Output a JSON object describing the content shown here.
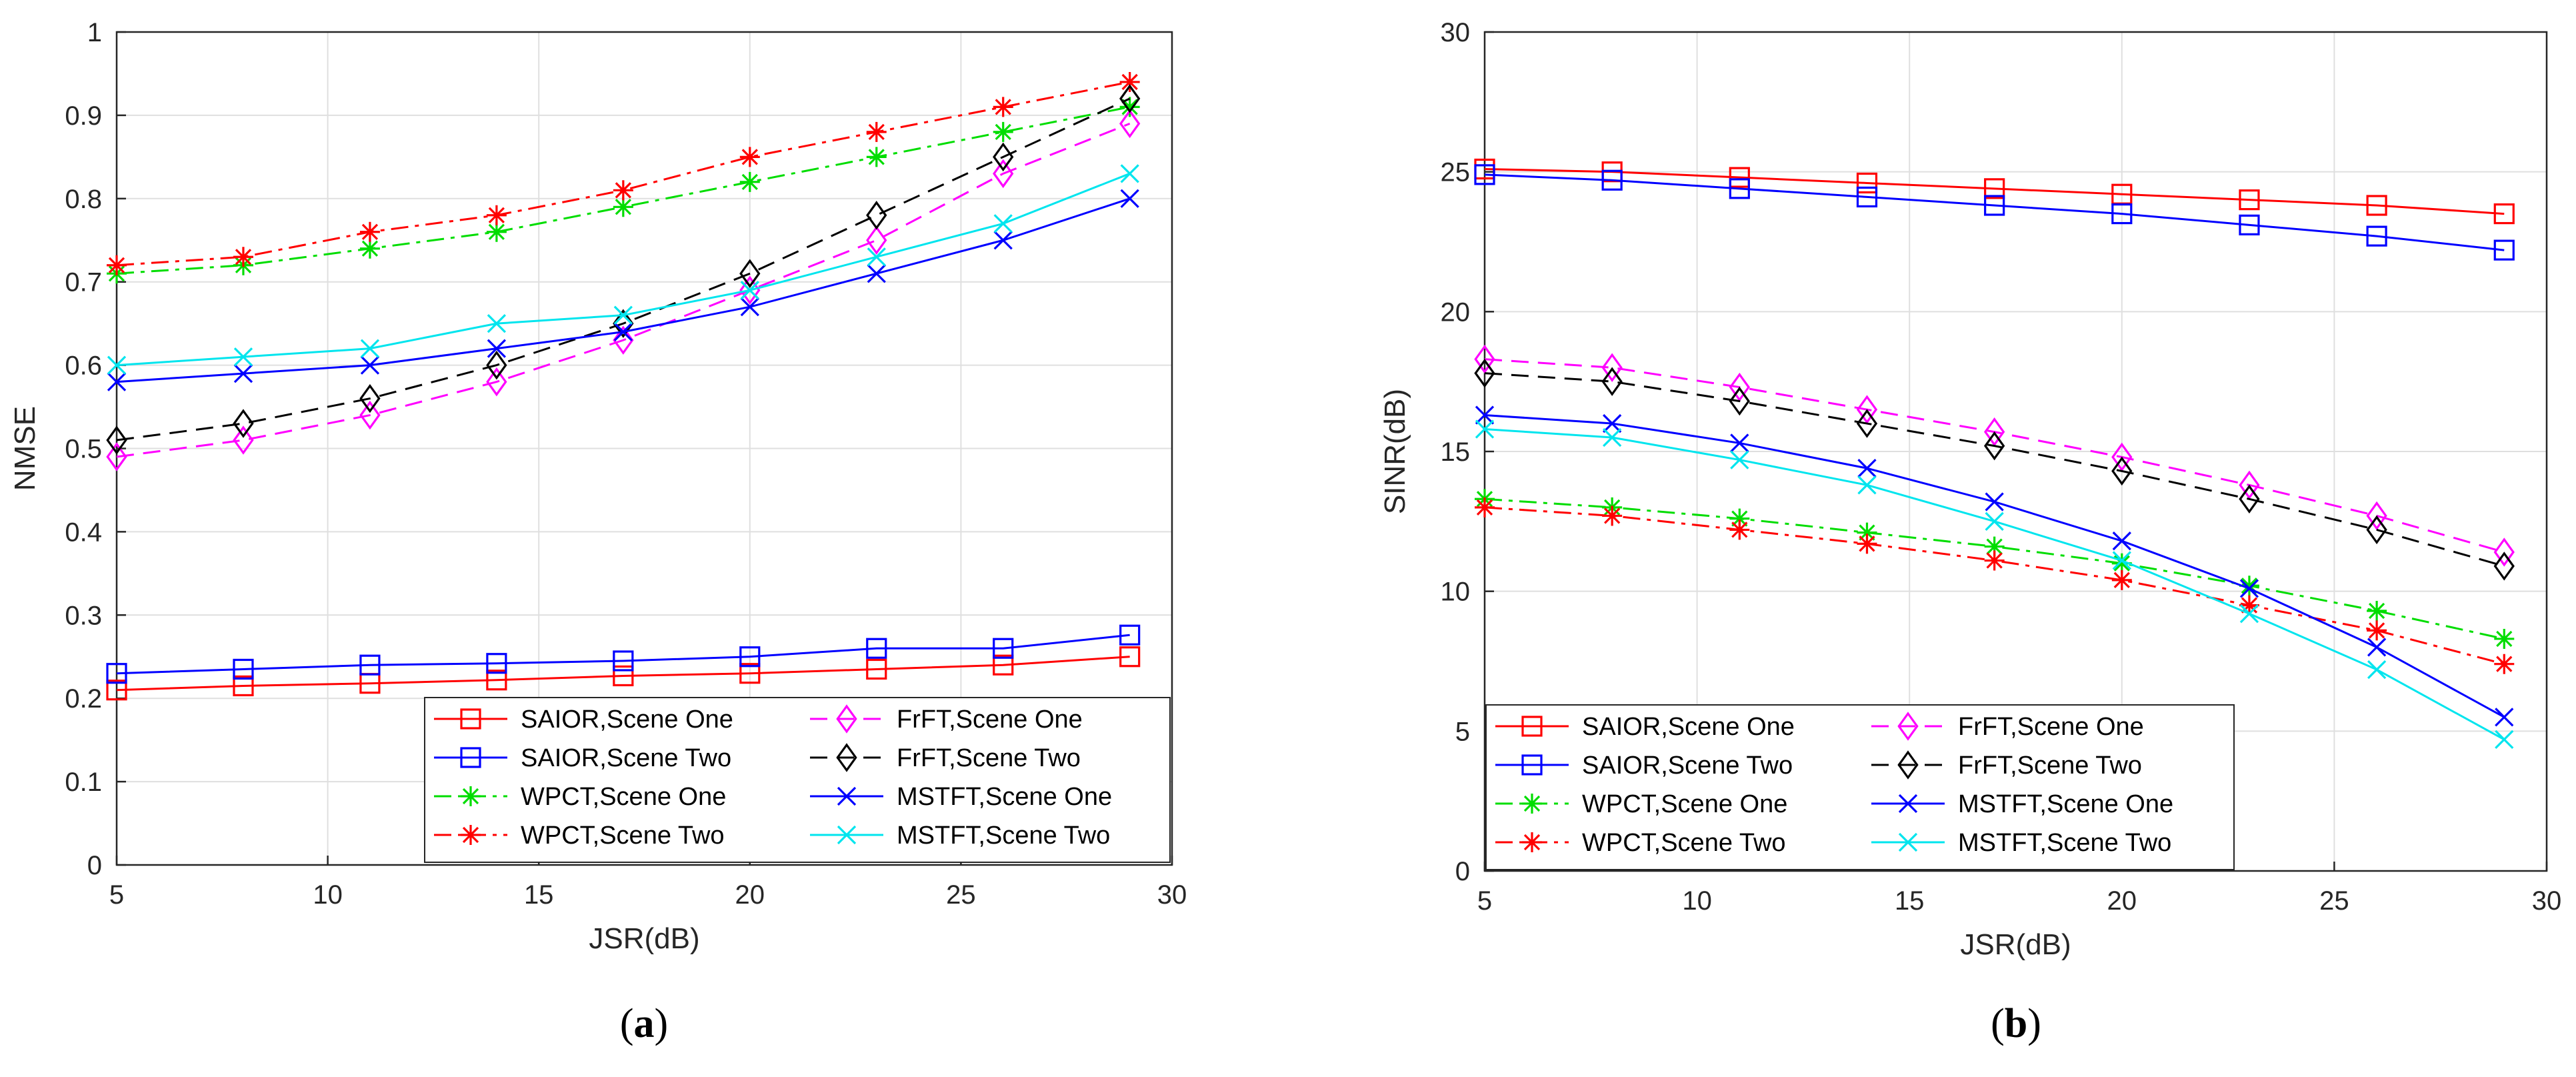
{
  "chart_data": [
    {
      "id": "a",
      "type": "line",
      "caption_open": "(",
      "caption_letter": "a",
      "caption_close": ")",
      "xlabel": "JSR(dB)",
      "ylabel": "NMSE",
      "xlim": [
        5,
        30
      ],
      "ylim": [
        0,
        1
      ],
      "xticks": [
        5,
        10,
        15,
        20,
        25,
        30
      ],
      "yticks": [
        0,
        0.1,
        0.2,
        0.3,
        0.4,
        0.5,
        0.6,
        0.7,
        0.8,
        0.9,
        1
      ],
      "ytick_labels": [
        "0",
        "0.1",
        "0.2",
        "0.3",
        "0.4",
        "0.5",
        "0.6",
        "0.7",
        "0.8",
        "0.9",
        "1"
      ],
      "grid": true,
      "legend_position": "bottom-right",
      "x": [
        5,
        8,
        11,
        14,
        17,
        20,
        23,
        26,
        29
      ],
      "series": [
        {
          "name": "SAIOR,Scene One",
          "color": "#ff0000",
          "dash": "solid",
          "marker": "square",
          "values": [
            0.21,
            0.215,
            0.218,
            0.222,
            0.227,
            0.23,
            0.235,
            0.24,
            0.25
          ]
        },
        {
          "name": "SAIOR,Scene Two",
          "color": "#0000ff",
          "dash": "solid",
          "marker": "square",
          "values": [
            0.23,
            0.235,
            0.24,
            0.242,
            0.245,
            0.25,
            0.26,
            0.26,
            0.276
          ]
        },
        {
          "name": "WPCT,Scene One",
          "color": "#00dd00",
          "dash": "dashdot",
          "marker": "asterisk",
          "values": [
            0.71,
            0.72,
            0.74,
            0.76,
            0.79,
            0.82,
            0.85,
            0.88,
            0.91
          ]
        },
        {
          "name": "WPCT,Scene Two",
          "color": "#ff0000",
          "dash": "dashdot",
          "marker": "asterisk",
          "values": [
            0.72,
            0.73,
            0.76,
            0.78,
            0.81,
            0.85,
            0.88,
            0.91,
            0.94
          ]
        },
        {
          "name": "FrFT,Scene One",
          "color": "#ff00ff",
          "dash": "dash",
          "marker": "diamond",
          "values": [
            0.49,
            0.51,
            0.54,
            0.58,
            0.63,
            0.69,
            0.75,
            0.83,
            0.89
          ]
        },
        {
          "name": "FrFT,Scene Two",
          "color": "#000000",
          "dash": "dash",
          "marker": "diamond",
          "values": [
            0.51,
            0.53,
            0.56,
            0.6,
            0.65,
            0.71,
            0.78,
            0.85,
            0.92
          ]
        },
        {
          "name": "MSTFT,Scene One",
          "color": "#0000ff",
          "dash": "solid",
          "marker": "x",
          "values": [
            0.58,
            0.59,
            0.6,
            0.62,
            0.64,
            0.67,
            0.71,
            0.75,
            0.8
          ]
        },
        {
          "name": "MSTFT,Scene Two",
          "color": "#00e5ee",
          "dash": "solid",
          "marker": "x",
          "values": [
            0.6,
            0.61,
            0.62,
            0.65,
            0.66,
            0.69,
            0.73,
            0.77,
            0.83
          ]
        }
      ]
    },
    {
      "id": "b",
      "type": "line",
      "caption_open": "(",
      "caption_letter": "b",
      "caption_close": ")",
      "xlabel": "JSR(dB)",
      "ylabel": "SINR(dB)",
      "xlim": [
        5,
        30
      ],
      "ylim": [
        0,
        30
      ],
      "xticks": [
        5,
        10,
        15,
        20,
        25,
        30
      ],
      "yticks": [
        0,
        5,
        10,
        15,
        20,
        25,
        30
      ],
      "ytick_labels": [
        "0",
        "5",
        "10",
        "15",
        "20",
        "25",
        "30"
      ],
      "grid": true,
      "legend_position": "bottom-right",
      "x": [
        5,
        8,
        11,
        14,
        17,
        20,
        23,
        26,
        29
      ],
      "series": [
        {
          "name": "SAIOR,Scene One",
          "color": "#ff0000",
          "dash": "solid",
          "marker": "square",
          "values": [
            25.1,
            25.0,
            24.8,
            24.6,
            24.4,
            24.2,
            24.0,
            23.8,
            23.5
          ]
        },
        {
          "name": "SAIOR,Scene Two",
          "color": "#0000ff",
          "dash": "solid",
          "marker": "square",
          "values": [
            24.9,
            24.7,
            24.4,
            24.1,
            23.8,
            23.5,
            23.1,
            22.7,
            22.2
          ]
        },
        {
          "name": "WPCT,Scene One",
          "color": "#00dd00",
          "dash": "dashdot",
          "marker": "asterisk",
          "values": [
            13.3,
            13.0,
            12.6,
            12.1,
            11.6,
            11.0,
            10.2,
            9.3,
            8.3
          ]
        },
        {
          "name": "WPCT,Scene Two",
          "color": "#ff0000",
          "dash": "dashdot",
          "marker": "asterisk",
          "values": [
            13.0,
            12.7,
            12.2,
            11.7,
            11.1,
            10.4,
            9.5,
            8.6,
            7.4
          ]
        },
        {
          "name": "FrFT,Scene One",
          "color": "#ff00ff",
          "dash": "dash",
          "marker": "diamond",
          "values": [
            18.3,
            18.0,
            17.3,
            16.5,
            15.7,
            14.8,
            13.8,
            12.7,
            11.4
          ]
        },
        {
          "name": "FrFT,Scene Two",
          "color": "#000000",
          "dash": "dash",
          "marker": "diamond",
          "values": [
            17.8,
            17.5,
            16.8,
            16.0,
            15.2,
            14.3,
            13.3,
            12.2,
            10.9
          ]
        },
        {
          "name": "MSTFT,Scene One",
          "color": "#0000ff",
          "dash": "solid",
          "marker": "x",
          "values": [
            16.3,
            16.0,
            15.3,
            14.4,
            13.2,
            11.8,
            10.1,
            8.0,
            5.5
          ]
        },
        {
          "name": "MSTFT,Scene Two",
          "color": "#00e5ee",
          "dash": "solid",
          "marker": "x",
          "values": [
            15.8,
            15.5,
            14.7,
            13.8,
            12.5,
            11.1,
            9.2,
            7.2,
            4.7
          ]
        }
      ]
    }
  ]
}
